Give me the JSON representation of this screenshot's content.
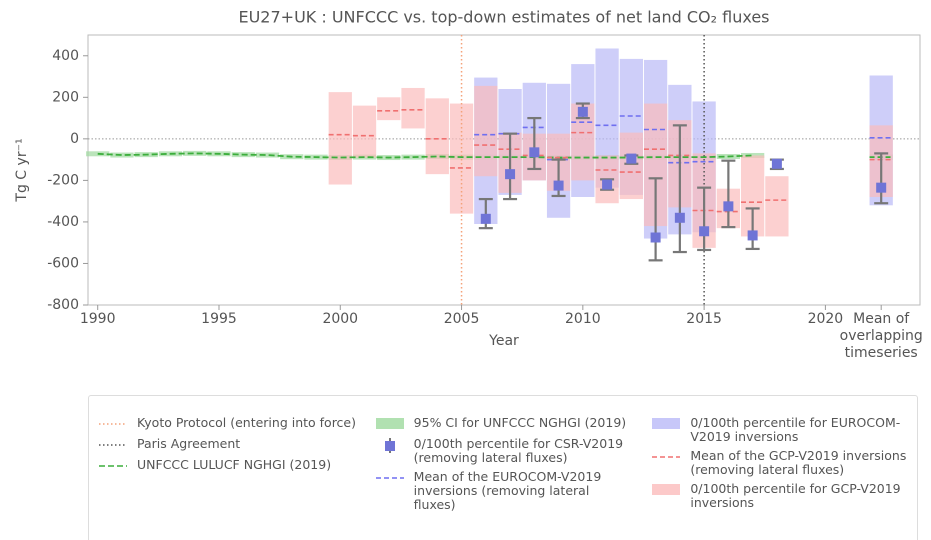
{
  "chart_data": {
    "type": "band-errorbar",
    "title": "EU27+UK : UNFCCC vs. top-down estimates of net land CO₂ fluxes",
    "x_label": "Year",
    "y_label": "Tg C yr⁻¹",
    "xlim": [
      1989.6,
      2023.9
    ],
    "xticks": [
      1990,
      1995,
      2000,
      2005,
      2010,
      2015,
      2020,
      {
        "value": 2022.3,
        "label": "Mean of overlapping timeseries"
      }
    ],
    "ylim": [
      -800,
      500
    ],
    "yticks": [
      -800,
      -600,
      -400,
      -200,
      0,
      200,
      400
    ],
    "zero_line": true,
    "series": [
      {
        "name": "Kyoto Protocol (entering into force)",
        "kind": "vline",
        "color": "#f4a27a",
        "x": 2005
      },
      {
        "name": "Paris Agreement",
        "kind": "vline",
        "color": "#555555",
        "x": 2015
      },
      {
        "name": "UNFCCC LULUCF NGHGI (2019)",
        "kind": "line",
        "color": "#3cae3c",
        "x": [
          1990,
          1991,
          1992,
          1993,
          1994,
          1995,
          1996,
          1997,
          1998,
          1999,
          2000,
          2001,
          2002,
          2003,
          2004,
          2005,
          2006,
          2007,
          2008,
          2009,
          2010,
          2011,
          2012,
          2013,
          2014,
          2015,
          2016,
          2017
        ],
        "values": [
          -72,
          -78,
          -76,
          -72,
          -70,
          -72,
          -76,
          -78,
          -86,
          -88,
          -90,
          -88,
          -90,
          -88,
          -85,
          -88,
          -88,
          -88,
          -88,
          -90,
          -90,
          -90,
          -90,
          -88,
          -88,
          -88,
          -85,
          -80
        ],
        "overlap": -88
      },
      {
        "name": "95% CI for UNFCCC NGHGI (2019)",
        "kind": "band",
        "color": "#9ed99e",
        "x": [
          1990,
          1991,
          1992,
          1993,
          1994,
          1995,
          1996,
          1997,
          1998,
          1999,
          2000,
          2001,
          2002,
          2003,
          2004,
          2005,
          2006,
          2007,
          2008,
          2009,
          2010,
          2011,
          2012,
          2013,
          2014,
          2015,
          2016,
          2017
        ],
        "low": [
          -84,
          -90,
          -88,
          -84,
          -82,
          -84,
          -88,
          -90,
          -98,
          -100,
          -102,
          -100,
          -102,
          -100,
          -97,
          -100,
          -100,
          -100,
          -100,
          -102,
          -102,
          -102,
          -102,
          -100,
          -100,
          -100,
          -97,
          -92
        ],
        "high": [
          -60,
          -66,
          -64,
          -60,
          -58,
          -60,
          -64,
          -66,
          -74,
          -76,
          -78,
          -76,
          -78,
          -76,
          -73,
          -76,
          -76,
          -76,
          -76,
          -78,
          -78,
          -78,
          -78,
          -76,
          -76,
          -76,
          -73,
          -68
        ],
        "overlap_low": -102,
        "overlap_high": -75
      },
      {
        "name": "0/100th percentile for CSR-V2019 (removing lateral fluxes)",
        "kind": "errorbar",
        "color": "#6f74d6",
        "bar_color": "#777777",
        "x": [
          2006,
          2007,
          2008,
          2009,
          2010,
          2011,
          2012,
          2013,
          2014,
          2015,
          2016,
          2017,
          2018
        ],
        "values": [
          -385,
          -170,
          -65,
          -225,
          130,
          -220,
          -95,
          -475,
          -380,
          -445,
          -325,
          -465,
          -120
        ],
        "low": [
          -430,
          -290,
          -145,
          -275,
          100,
          -245,
          -120,
          -585,
          -545,
          -535,
          -425,
          -530,
          -145
        ],
        "high": [
          -290,
          25,
          100,
          -100,
          170,
          -195,
          -80,
          -190,
          65,
          -235,
          -105,
          -335,
          -100
        ],
        "overlap": -235,
        "overlap_low": -310,
        "overlap_high": -70
      },
      {
        "name": "Mean of the EUROCOM-V2019 inversions (removing lateral fluxes)",
        "kind": "mean",
        "color": "#6f6ff0",
        "x": [
          2006,
          2007,
          2008,
          2009,
          2010,
          2011,
          2012,
          2013,
          2014,
          2015
        ],
        "values": [
          20,
          25,
          55,
          -100,
          80,
          65,
          110,
          45,
          -115,
          -110
        ],
        "overlap": 5
      },
      {
        "name": "0/100th percentile for EUROCOM-V2019 inversions",
        "kind": "band",
        "color": "#b9b9f7",
        "x": [
          2006,
          2007,
          2008,
          2009,
          2010,
          2011,
          2012,
          2013,
          2014,
          2015
        ],
        "low": [
          -410,
          -270,
          -200,
          -380,
          -280,
          -235,
          -270,
          -480,
          -460,
          -450
        ],
        "high": [
          295,
          240,
          270,
          265,
          360,
          435,
          385,
          380,
          260,
          180
        ],
        "overlap_low": -320,
        "overlap_high": 305
      },
      {
        "name": "Mean of the GCP-V2019 inversions (removing lateral fluxes)",
        "kind": "mean",
        "color": "#f07070",
        "x": [
          2000,
          2001,
          2002,
          2003,
          2004,
          2005,
          2006,
          2007,
          2008,
          2009,
          2010,
          2011,
          2012,
          2013,
          2014,
          2015,
          2016,
          2017,
          2018
        ],
        "values": [
          20,
          15,
          135,
          140,
          0,
          -140,
          -30,
          -50,
          -80,
          -90,
          30,
          -150,
          -160,
          -50,
          -80,
          -345,
          -350,
          -305,
          -295
        ],
        "overlap": -100
      },
      {
        "name": "0/100th percentile for GCP-V2019 inversions",
        "kind": "band",
        "color": "#fbbcbc",
        "x": [
          2000,
          2001,
          2002,
          2003,
          2004,
          2005,
          2006,
          2007,
          2008,
          2009,
          2010,
          2011,
          2012,
          2013,
          2014,
          2015,
          2016,
          2017,
          2018
        ],
        "low": [
          -220,
          -90,
          90,
          50,
          -170,
          -360,
          -180,
          -260,
          -200,
          -250,
          -200,
          -310,
          -290,
          -420,
          -330,
          -525,
          -430,
          -470,
          -470
        ],
        "high": [
          225,
          160,
          200,
          245,
          195,
          170,
          255,
          30,
          25,
          25,
          170,
          -80,
          30,
          170,
          90,
          -70,
          -240,
          -80,
          -180
        ],
        "overlap_low": -280,
        "overlap_high": 65
      }
    ]
  }
}
